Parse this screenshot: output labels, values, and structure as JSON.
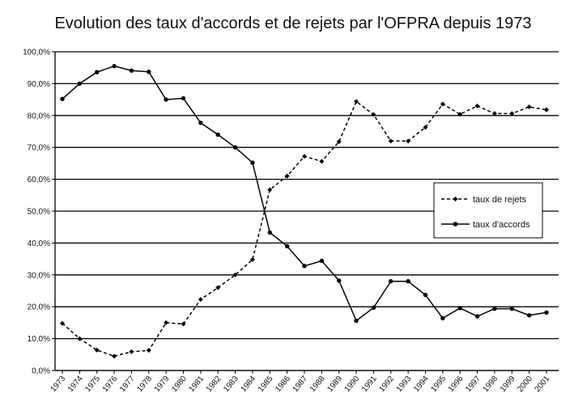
{
  "chart_data": {
    "type": "line",
    "title": "Evolution des taux d'accords et de rejets par l'OFPRA depuis 1973",
    "xlabel": "",
    "ylabel": "",
    "categories": [
      "1973",
      "1974",
      "1975",
      "1976",
      "1977",
      "1978",
      "1979",
      "1980",
      "1981",
      "1982",
      "1983",
      "1984",
      "1985",
      "1986",
      "1987",
      "1988",
      "1989",
      "1990",
      "1991",
      "1992",
      "1993",
      "1994",
      "1995",
      "1996",
      "1997",
      "1998",
      "1999",
      "2000",
      "2001"
    ],
    "ylim": [
      0,
      100
    ],
    "yticks": [
      "0,0%",
      "10,0%",
      "20,0%",
      "30,0%",
      "40,0%",
      "50,0%",
      "60,0%",
      "70,0%",
      "80,0%",
      "90,0%",
      "100,0%"
    ],
    "grid": "horizontal",
    "legend_position": "center-right",
    "series": [
      {
        "name": "taux de rejets",
        "style": "dashed",
        "marker": "diamond",
        "color": "#000000",
        "values": [
          14.8,
          10.0,
          6.4,
          4.5,
          5.9,
          6.3,
          15.0,
          14.6,
          22.3,
          26.0,
          30.0,
          34.8,
          56.7,
          61.0,
          67.2,
          65.6,
          71.8,
          84.4,
          80.3,
          72.0,
          72.0,
          76.3,
          83.6,
          80.4,
          83.0,
          80.6,
          80.6,
          82.7,
          81.8
        ]
      },
      {
        "name": "taux d'accords",
        "style": "solid",
        "marker": "circle",
        "color": "#000000",
        "values": [
          85.2,
          90.0,
          93.6,
          95.5,
          94.1,
          93.7,
          85.0,
          85.4,
          77.7,
          74.0,
          70.0,
          65.2,
          43.3,
          39.0,
          32.8,
          34.4,
          28.2,
          15.6,
          19.7,
          28.0,
          28.0,
          23.7,
          16.4,
          19.6,
          17.0,
          19.4,
          19.4,
          17.3,
          18.2
        ]
      }
    ]
  }
}
